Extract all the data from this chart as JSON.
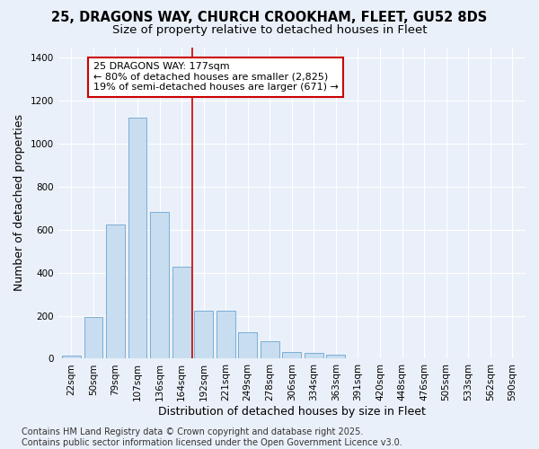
{
  "title_line1": "25, DRAGONS WAY, CHURCH CROOKHAM, FLEET, GU52 8DS",
  "title_line2": "Size of property relative to detached houses in Fleet",
  "xlabel": "Distribution of detached houses by size in Fleet",
  "ylabel": "Number of detached properties",
  "categories": [
    "22sqm",
    "50sqm",
    "79sqm",
    "107sqm",
    "136sqm",
    "164sqm",
    "192sqm",
    "221sqm",
    "249sqm",
    "278sqm",
    "306sqm",
    "334sqm",
    "363sqm",
    "391sqm",
    "420sqm",
    "448sqm",
    "476sqm",
    "505sqm",
    "533sqm",
    "562sqm",
    "590sqm"
  ],
  "values": [
    15,
    195,
    625,
    1120,
    685,
    430,
    225,
    225,
    125,
    80,
    30,
    25,
    20,
    0,
    0,
    0,
    0,
    0,
    0,
    0,
    0
  ],
  "bar_color": "#c8ddf0",
  "bar_edge_color": "#7aaed6",
  "highlight_bar_index": 5,
  "vline_color": "#cc0000",
  "vline_position": 5.5,
  "annotation_text": "25 DRAGONS WAY: 177sqm\n← 80% of detached houses are smaller (2,825)\n19% of semi-detached houses are larger (671) →",
  "annotation_box_color": "#cc0000",
  "ylim": [
    0,
    1450
  ],
  "yticks": [
    0,
    200,
    400,
    600,
    800,
    1000,
    1200,
    1400
  ],
  "background_color": "#eaf0f9",
  "grid_color": "#ffffff",
  "footer_text": "Contains HM Land Registry data © Crown copyright and database right 2025.\nContains public sector information licensed under the Open Government Licence v3.0.",
  "title_fontsize": 10.5,
  "subtitle_fontsize": 9.5,
  "axis_label_fontsize": 9,
  "tick_fontsize": 7.5,
  "annotation_fontsize": 8,
  "footer_fontsize": 7
}
